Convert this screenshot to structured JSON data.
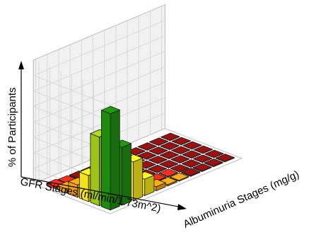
{
  "chart_data": {
    "type": "bar3d",
    "title": "",
    "ylabel": "% of Participants",
    "xlabel": "GFR Stages (ml/min/1.73m^2)",
    "zlabel": "Albuminuria Stages (mg/g)",
    "zlim": [
      0,
      45
    ],
    "grid": true,
    "gfr_rows": 6,
    "albuminuria_cols": 11,
    "values": [
      [
        0.8,
        0.4,
        0.3,
        0.2,
        0.1,
        0.1,
        0.1,
        0.1,
        0.1,
        0.1,
        0.1
      ],
      [
        1.5,
        0.5,
        0.3,
        0.2,
        0.1,
        0.1,
        0.1,
        0.1,
        0.1,
        0.1,
        0.1
      ],
      [
        4.5,
        1.0,
        0.6,
        0.4,
        0.2,
        0.2,
        0.1,
        0.1,
        0.1,
        0.1,
        0.1
      ],
      [
        9.5,
        2.0,
        1.0,
        0.5,
        0.3,
        0.2,
        0.1,
        0.1,
        0.1,
        0.1,
        0.1
      ],
      [
        25.0,
        4.0,
        1.5,
        0.8,
        0.4,
        0.3,
        0.2,
        0.1,
        0.1,
        0.1,
        0.1
      ],
      [
        35.0,
        21.0,
        14.0,
        6.0,
        1.5,
        0.5,
        0.3,
        0.3,
        0.2,
        0.2,
        0.2
      ]
    ],
    "colors": {
      "dark_green": "#1e8a0e",
      "yellow_green": "#9fc419",
      "yellow": "#f2e21b",
      "orange": "#f39c12",
      "red": "#e5281a",
      "dark_red": "#8a0f0f"
    }
  }
}
